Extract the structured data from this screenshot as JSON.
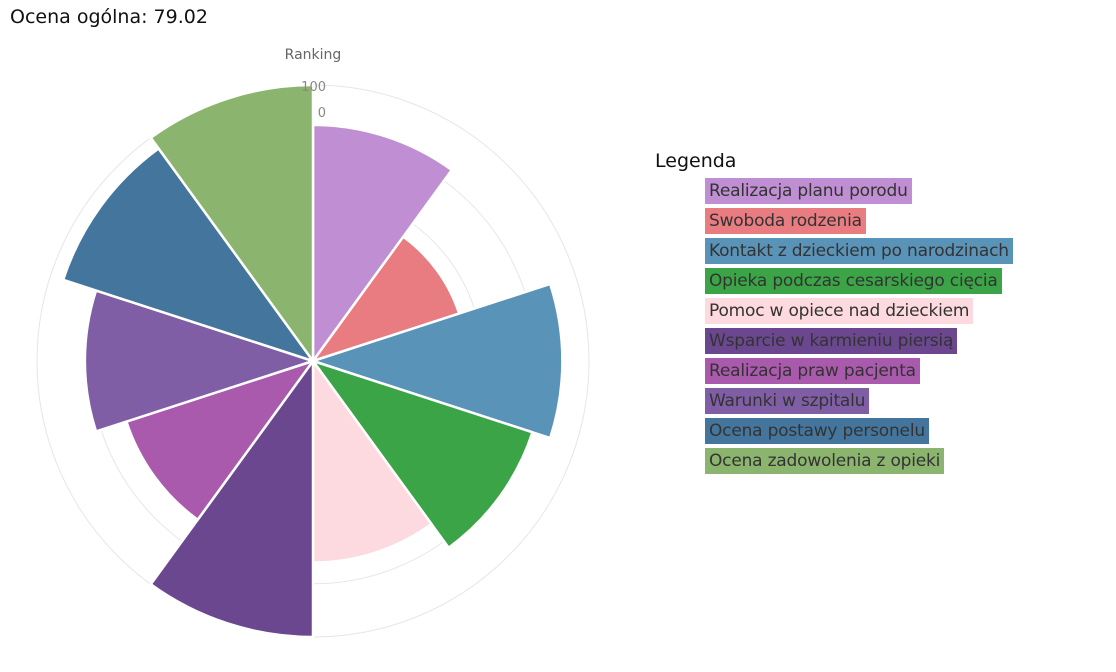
{
  "header": {
    "label": "Ocena ogólna:",
    "value": "79.02"
  },
  "chart_data": {
    "type": "polar-area",
    "title": "Ranking",
    "radial_ticks": [
      "100",
      "0"
    ],
    "rlim": [
      0,
      100
    ],
    "grid": true,
    "categories": [
      "Realizacja planu porodu",
      "Swoboda rodzenia",
      "Kontakt z dzieckiem po narodzinach",
      "Opieka podczas cesarskiego cięcia",
      "Pomoc w opiece nad dzieckiem",
      "Wsparcie w karmieniu piersią",
      "Realizacja praw pacjenta",
      "Warunki w szpitalu",
      "Ocena postawy personelu",
      "Ocena zadowolenia z opieki"
    ],
    "values": [
      85,
      54,
      90,
      83,
      72,
      100,
      70,
      82,
      95,
      100
    ],
    "colors": [
      "#c08fd3",
      "#e87c80",
      "#5a93b8",
      "#3ba446",
      "#fddadf",
      "#6b478f",
      "#a95aad",
      "#7f5ea6",
      "#44769d",
      "#8bb46e"
    ],
    "legend_position": "right"
  },
  "legend": {
    "title": "Legenda"
  }
}
